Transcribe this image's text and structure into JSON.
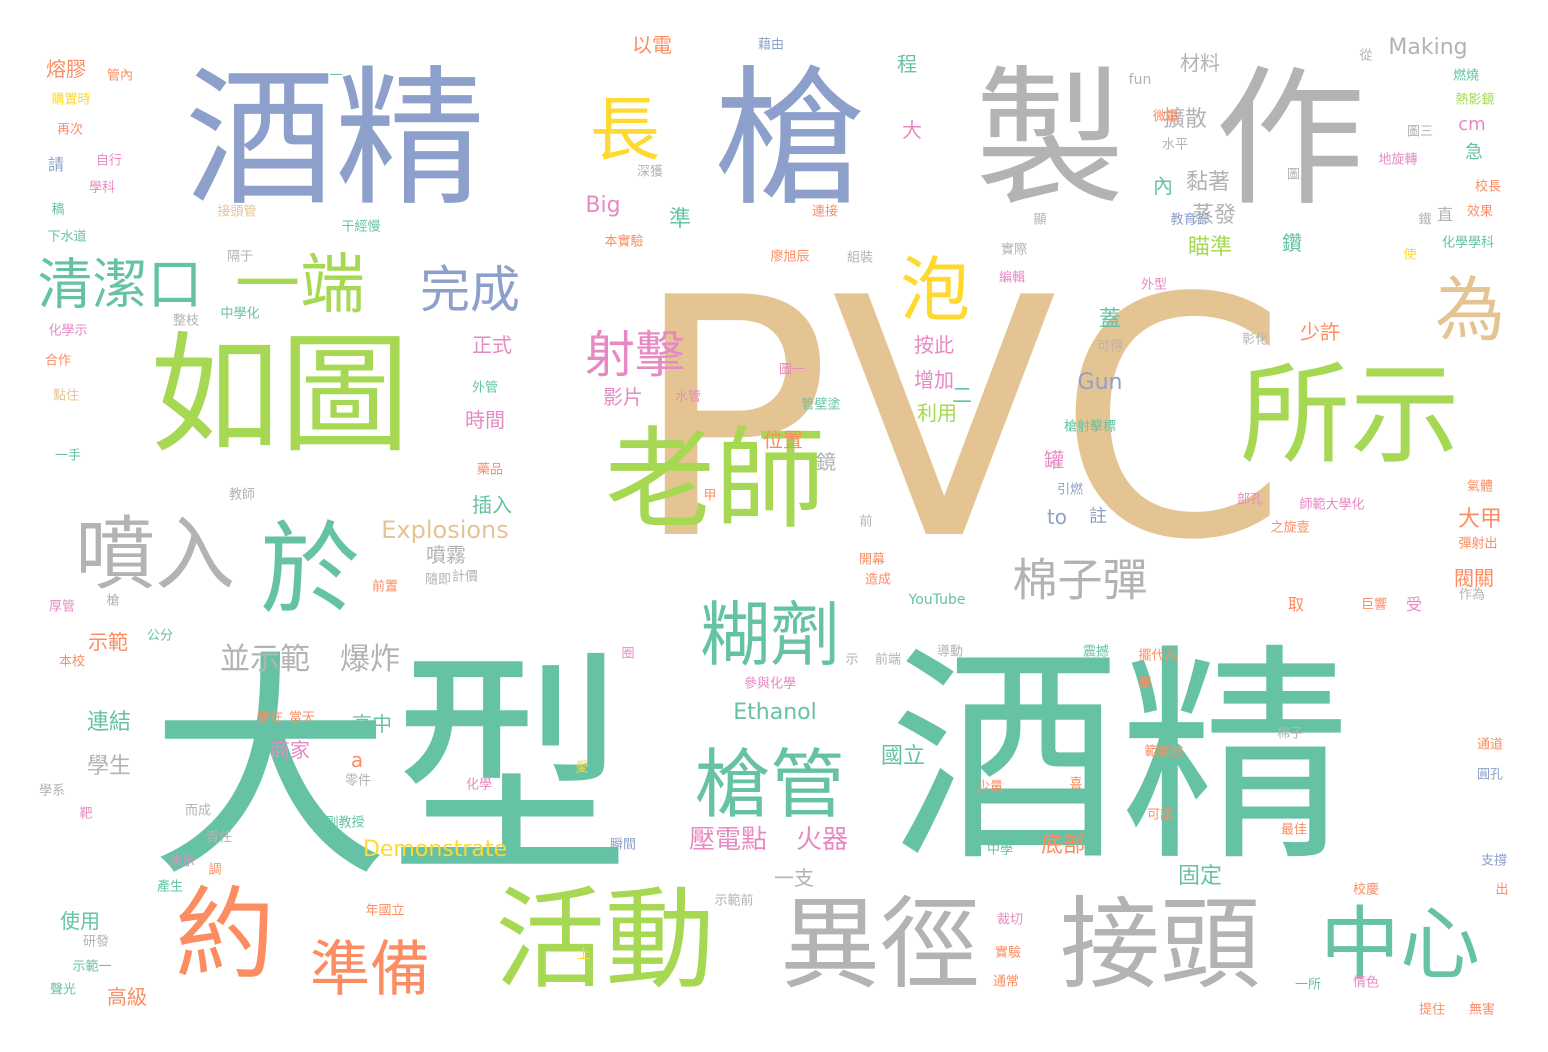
{
  "palette": {
    "blue": "#8da0cb",
    "gray": "#b3b3b3",
    "tan": "#e5c494",
    "green": "#a6d854",
    "teal": "#66c2a5",
    "orange": "#fc8d62",
    "yellow": "#ffd92f",
    "pink": "#e78ac3"
  },
  "words": [
    "PVC",
    "大型",
    "酒精",
    "酒精",
    "槍",
    "製",
    "作",
    "如圖",
    "所示",
    "老師",
    "於",
    "活動",
    "約",
    "異徑",
    "接頭",
    "中心",
    "長",
    "泡",
    "為",
    "一端",
    "清潔口",
    "完成",
    "噴入",
    "射擊",
    "糊劑",
    "槍管",
    "準備",
    "棉子彈",
    "並示範",
    "爆炸",
    "Explosions",
    "Demonstrate",
    "Ethanol",
    "Making",
    "Big",
    "Gun",
    "to",
    "fun",
    "cm",
    "YouTube",
    "a",
    "壓電點",
    "火器",
    "擴散",
    "黏著",
    "蒸發",
    "瞄準",
    "材料",
    "熔膠",
    "教育部",
    "正式",
    "增加",
    "利用",
    "時間",
    "影片",
    "位置",
    "插入",
    "噴霧",
    "計價",
    "連結",
    "學生",
    "商家",
    "高中",
    "國立",
    "固定",
    "使用",
    "高級",
    "研發",
    "示範",
    "一支",
    "底部",
    "少許",
    "按此",
    "水平",
    "急",
    "圖二",
    "鑽",
    "蓋",
    "罐",
    "內",
    "鏡",
    "準",
    "大甲",
    "閥關",
    "取",
    "受",
    "作為",
    "巨響",
    "校長",
    "效果",
    "化學學科",
    "直",
    "使",
    "外型",
    "程",
    "大",
    "以電",
    "藉由",
    "管內",
    "購置時",
    "再次",
    "請",
    "自行",
    "學科",
    "稿",
    "下水道",
    "接頭管",
    "深獲",
    "本實驗",
    "連接",
    "廖旭辰",
    "組裝",
    "實際",
    "顯",
    "編輯",
    "干經慢",
    "隔于",
    "整枝",
    "中學化",
    "化學示",
    "合作",
    "點住",
    "一手",
    "教師",
    "外管",
    "水管",
    "圖一",
    "管壁塗",
    "可得",
    "彰化",
    "槍射擊標",
    "引燃",
    "註",
    "藥品",
    "甲",
    "前",
    "開幕",
    "造成",
    "隨即",
    "前置",
    "槍",
    "厚管",
    "公分",
    "本校",
    "示",
    "前端",
    "導動",
    "震撼",
    "擺代為",
    "參與化學",
    "圈",
    "塞",
    "管在",
    "當天",
    "零件",
    "學系",
    "靶",
    "而成",
    "副教授",
    "化學",
    "愛",
    "少量",
    "喜",
    "範實驗",
    "可讀",
    "棉子",
    "通道",
    "圓孔",
    "最佳",
    "支撐",
    "責任",
    "演示",
    "瞬間",
    "中學",
    "產生",
    "調",
    "出",
    "年國立",
    "裁切",
    "實驗",
    "通常",
    "一所",
    "情色",
    "提住",
    "無害",
    "示範一",
    "上",
    "示範前",
    "聲光",
    "校慶",
    "熱影鏡",
    "燃燒",
    "圖三",
    "微量",
    "地旋轉",
    "師範大學化",
    "氣體",
    "彈射出",
    "之旋壹",
    "部孔",
    "鐵",
    "從",
    "一",
    "二",
    "Making"
  ]
}
